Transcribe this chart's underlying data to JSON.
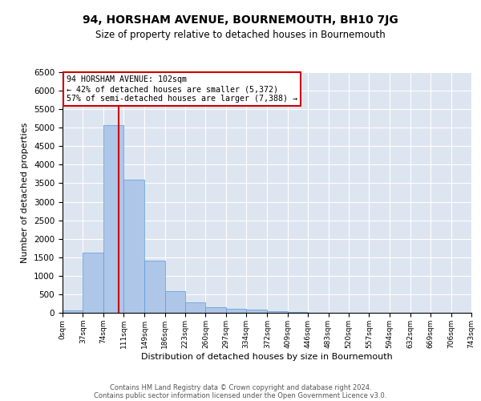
{
  "title": "94, HORSHAM AVENUE, BOURNEMOUTH, BH10 7JG",
  "subtitle": "Size of property relative to detached houses in Bournemouth",
  "xlabel": "Distribution of detached houses by size in Bournemouth",
  "ylabel": "Number of detached properties",
  "footnote1": "Contains HM Land Registry data © Crown copyright and database right 2024.",
  "footnote2": "Contains public sector information licensed under the Open Government Licence v3.0.",
  "annotation_line1": "94 HORSHAM AVENUE: 102sqm",
  "annotation_line2": "← 42% of detached houses are smaller (5,372)",
  "annotation_line3": "57% of semi-detached houses are larger (7,388) →",
  "bar_color": "#aec6e8",
  "bar_edge_color": "#5b9bd5",
  "marker_color": "#cc0000",
  "annotation_box_color": "#cc0000",
  "background_color": "#dde5f0",
  "ylim": [
    0,
    6500
  ],
  "bin_edges": [
    0,
    37,
    74,
    111,
    149,
    186,
    223,
    260,
    297,
    334,
    372,
    409,
    446,
    483,
    520,
    557,
    594,
    632,
    669,
    706,
    743
  ],
  "bar_heights": [
    60,
    1620,
    5080,
    3600,
    1400,
    590,
    290,
    155,
    110,
    80,
    40,
    20,
    10,
    5,
    3,
    2,
    1,
    1,
    0,
    0
  ],
  "property_size": 102,
  "tick_labels": [
    "0sqm",
    "37sqm",
    "74sqm",
    "111sqm",
    "149sqm",
    "186sqm",
    "223sqm",
    "260sqm",
    "297sqm",
    "334sqm",
    "372sqm",
    "409sqm",
    "446sqm",
    "483sqm",
    "520sqm",
    "557sqm",
    "594sqm",
    "632sqm",
    "669sqm",
    "706sqm",
    "743sqm"
  ],
  "yticks": [
    0,
    500,
    1000,
    1500,
    2000,
    2500,
    3000,
    3500,
    4000,
    4500,
    5000,
    5500,
    6000,
    6500
  ]
}
